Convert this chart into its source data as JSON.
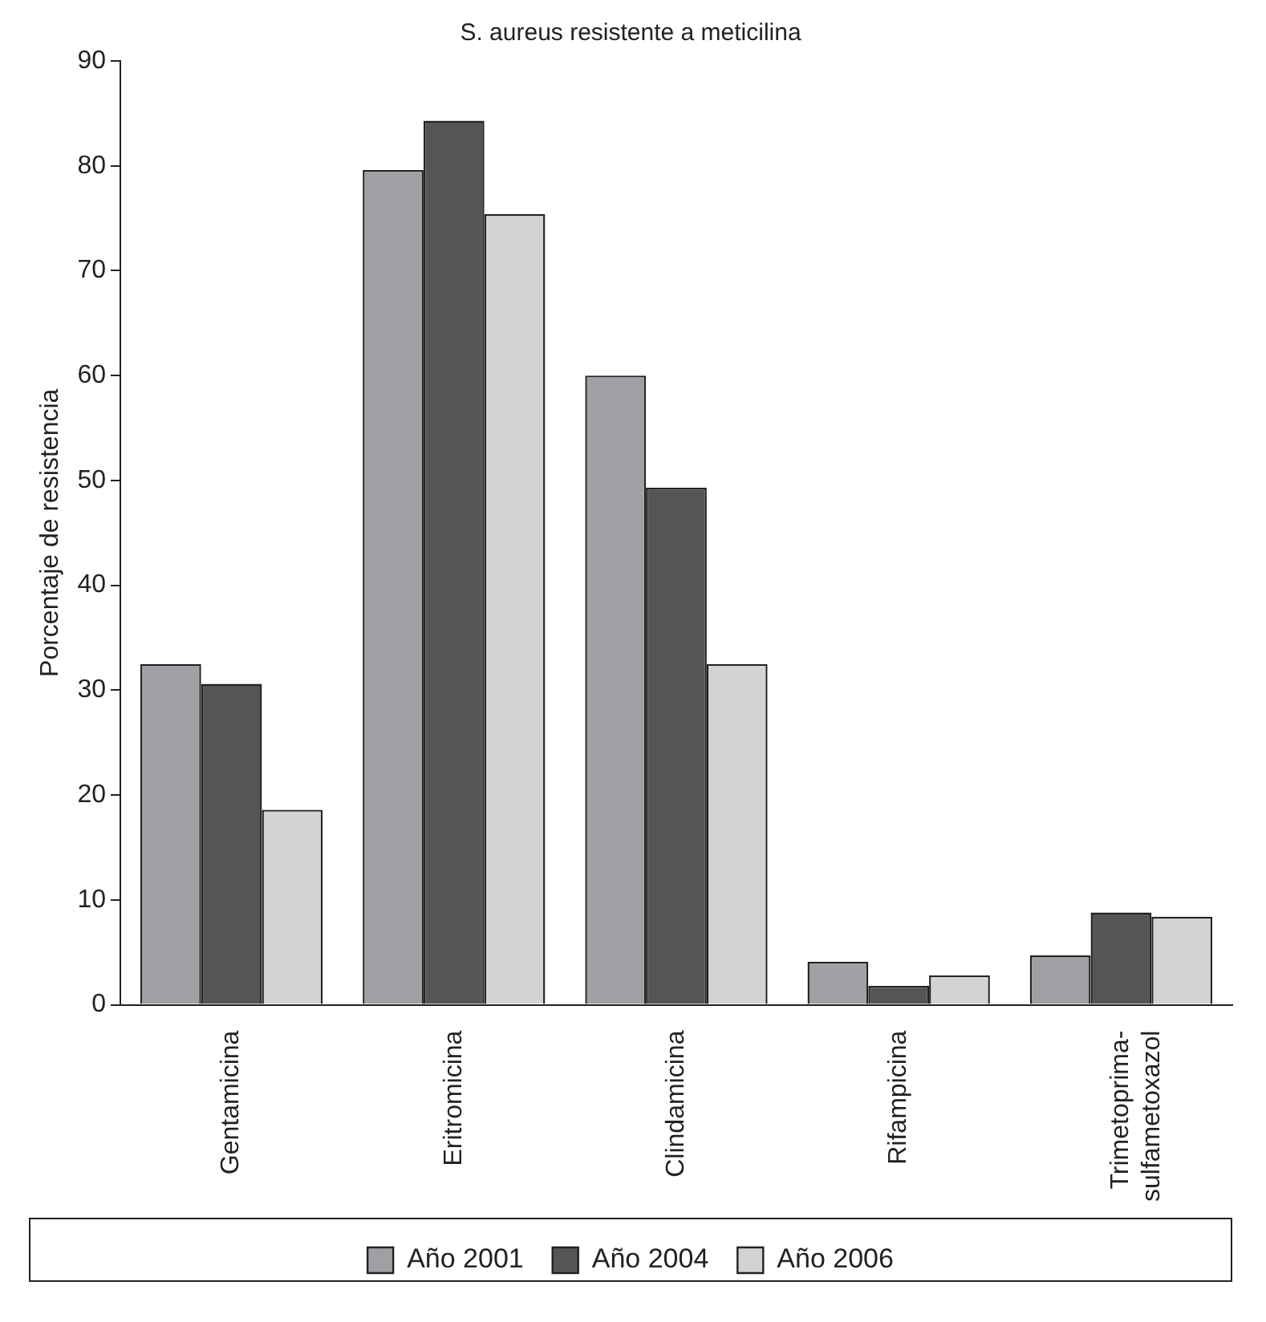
{
  "chart_data": {
    "type": "bar",
    "title": "S. aureus resistente a meticilina",
    "ylabel": "Porcentaje de resistencia",
    "categories": [
      "Gentamicina",
      "Eritromicina",
      "Clindamicina",
      "Rifampicina",
      "Trimetoprima-sulfametoxazol"
    ],
    "series": [
      {
        "name": "Año 2001",
        "color": "#a0a0a4",
        "values": [
          32.5,
          79.6,
          60.0,
          4.1,
          4.7
        ]
      },
      {
        "name": "Año 2004",
        "color": "#555558",
        "values": [
          30.6,
          84.3,
          49.3,
          1.8,
          8.8
        ]
      },
      {
        "name": "Año 2006",
        "color": "#d3d3d5",
        "values": [
          18.6,
          75.4,
          32.5,
          2.8,
          8.4
        ]
      }
    ],
    "ylim": [
      0,
      90
    ],
    "yticks": [
      0,
      10,
      20,
      30,
      40,
      50,
      60,
      70,
      80,
      90
    ],
    "grid": false,
    "legend": "bottom"
  }
}
